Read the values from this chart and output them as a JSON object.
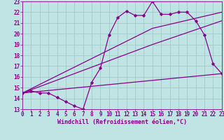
{
  "xlabel": "Windchill (Refroidissement éolien,°C)",
  "background_color": "#c0e4e4",
  "grid_color": "#a0cccc",
  "line_color": "#880088",
  "xlim": [
    0,
    23
  ],
  "ylim": [
    13,
    23
  ],
  "xticks": [
    0,
    1,
    2,
    3,
    4,
    5,
    6,
    7,
    8,
    9,
    10,
    11,
    12,
    13,
    14,
    15,
    16,
    17,
    18,
    19,
    20,
    21,
    22,
    23
  ],
  "yticks": [
    13,
    14,
    15,
    16,
    17,
    18,
    19,
    20,
    21,
    22,
    23
  ],
  "line1_x": [
    0,
    1,
    2,
    3,
    4,
    5,
    6,
    7,
    8,
    9,
    10,
    11,
    12,
    13,
    14,
    15,
    16,
    17,
    18,
    19,
    20,
    21,
    22,
    23
  ],
  "line1_y": [
    14.5,
    14.7,
    14.5,
    14.5,
    14.1,
    13.7,
    13.3,
    13.0,
    15.5,
    16.8,
    19.9,
    21.5,
    22.1,
    21.7,
    21.7,
    23.0,
    21.8,
    21.8,
    22.0,
    22.0,
    21.2,
    19.9,
    17.2,
    16.3
  ],
  "line2_x": [
    0,
    15,
    23
  ],
  "line2_y": [
    14.5,
    20.5,
    22.0
  ],
  "line3_x": [
    0,
    15,
    23
  ],
  "line3_y": [
    14.5,
    19.0,
    21.2
  ],
  "line4_x": [
    0,
    23
  ],
  "line4_y": [
    14.5,
    16.3
  ],
  "tick_fontsize": 5.5,
  "xlabel_fontsize": 6.0
}
